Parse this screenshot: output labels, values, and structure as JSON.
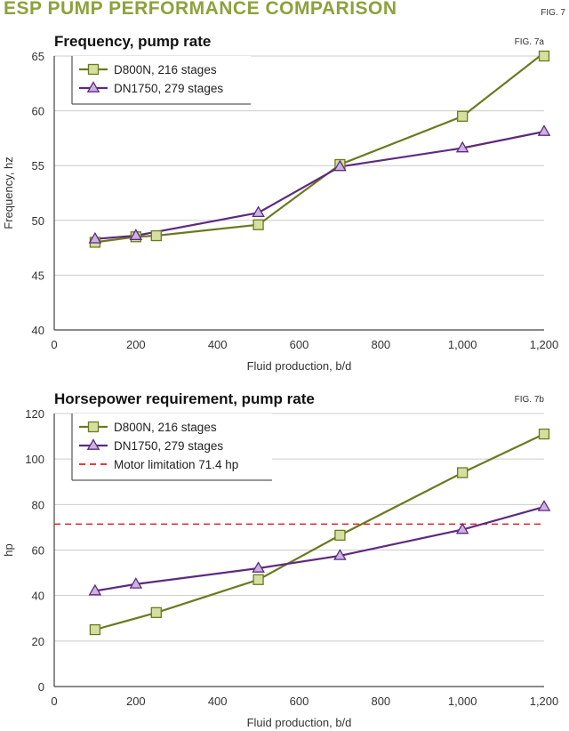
{
  "header": {
    "title": "ESP PUMP PERFORMANCE COMPARISON",
    "fig_label": "FIG. 7"
  },
  "colors": {
    "title": "#8ca23c",
    "series_a_line": "#6b7a1f",
    "series_a_fill": "#d4e0a0",
    "series_a_stroke": "#6b7a1f",
    "series_b_line": "#5e2a7e",
    "series_b_fill": "#cbb3e2",
    "series_b_stroke": "#5e2a7e",
    "limit_line": "#e0202a",
    "grid": "#cccccc",
    "axis": "#444444"
  },
  "chart_data": [
    {
      "type": "line",
      "fig_label": "FIG. 7a",
      "title": "Frequency, pump rate",
      "xlabel": "Fluid production, b/d",
      "ylabel": "Frequency, hz",
      "xlim": [
        0,
        1200
      ],
      "ylim": [
        40,
        65
      ],
      "xticks": [
        0,
        200,
        400,
        600,
        800,
        1000,
        1200
      ],
      "xtick_labels": [
        "0",
        "200",
        "400",
        "600",
        "800",
        "1,000",
        "1,200"
      ],
      "yticks": [
        40,
        45,
        50,
        55,
        60,
        65
      ],
      "ytick_labels": [
        "40",
        "45",
        "50",
        "55",
        "60",
        "65"
      ],
      "grid": true,
      "legend_position": "top-left",
      "series": [
        {
          "name": "D800N, 216 stages",
          "marker": "square",
          "x": [
            100,
            200,
            250,
            500,
            700,
            1000,
            1200
          ],
          "y": [
            48.0,
            48.5,
            48.6,
            49.6,
            55.1,
            59.5,
            65.3
          ]
        },
        {
          "name": "DN1750, 279 stages",
          "marker": "triangle",
          "x": [
            100,
            200,
            500,
            700,
            1000,
            1200
          ],
          "y": [
            48.3,
            48.6,
            50.7,
            54.9,
            56.6,
            58.1
          ]
        }
      ]
    },
    {
      "type": "line",
      "fig_label": "FIG. 7b",
      "title": "Horsepower requirement, pump rate",
      "xlabel": "Fluid production, b/d",
      "ylabel": "hp",
      "xlim": [
        0,
        1200
      ],
      "ylim": [
        0,
        120
      ],
      "xticks": [
        0,
        200,
        400,
        600,
        800,
        1000,
        1200
      ],
      "xtick_labels": [
        "0",
        "200",
        "400",
        "600",
        "800",
        "1,000",
        "1,200"
      ],
      "yticks": [
        0,
        20,
        40,
        60,
        80,
        100,
        120
      ],
      "ytick_labels": [
        "0",
        "20",
        "40",
        "60",
        "80",
        "100",
        "120"
      ],
      "grid": true,
      "legend_position": "top-left",
      "series": [
        {
          "name": "D800N, 216 stages",
          "marker": "square",
          "x": [
            100,
            250,
            500,
            700,
            1000,
            1200
          ],
          "y": [
            25,
            32.5,
            47,
            66.5,
            94,
            111
          ]
        },
        {
          "name": "DN1750, 279 stages",
          "marker": "triangle",
          "x": [
            100,
            200,
            500,
            700,
            1000,
            1200
          ],
          "y": [
            42,
            45,
            52,
            57.5,
            69,
            79
          ]
        }
      ],
      "reference_lines": [
        {
          "name": "Motor limitation 71.4 hp",
          "y": 71.4
        }
      ]
    }
  ]
}
